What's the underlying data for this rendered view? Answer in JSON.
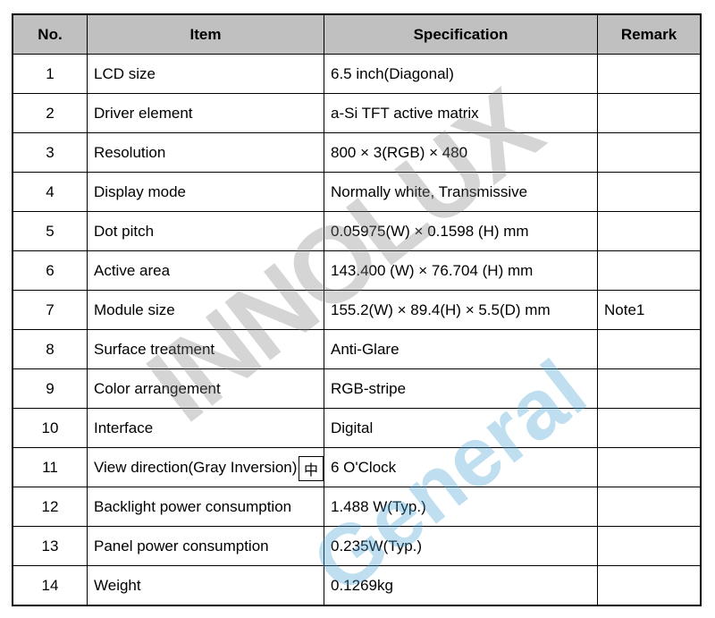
{
  "table": {
    "headers": [
      "No.",
      "Item",
      "Specification",
      "Remark"
    ],
    "rows": [
      {
        "no": "1",
        "item": "LCD size",
        "spec": "6.5 inch(Diagonal)",
        "remark": ""
      },
      {
        "no": "2",
        "item": "Driver element",
        "spec": "a-Si TFT active matrix",
        "remark": ""
      },
      {
        "no": "3",
        "item": "Resolution",
        "spec": "800 × 3(RGB) × 480",
        "remark": ""
      },
      {
        "no": "4",
        "item": "Display mode",
        "spec": "Normally white, Transmissive",
        "remark": ""
      },
      {
        "no": "5",
        "item": "Dot pitch",
        "spec": "0.05975(W) × 0.1598 (H) mm",
        "remark": ""
      },
      {
        "no": "6",
        "item": "Active area",
        "spec": "143.400 (W) × 76.704 (H) mm",
        "remark": ""
      },
      {
        "no": "7",
        "item": "Module size",
        "spec": "155.2(W) × 89.4(H) × 5.5(D) mm",
        "remark": "Note1"
      },
      {
        "no": "8",
        "item": "Surface treatment",
        "spec": "Anti-Glare",
        "remark": ""
      },
      {
        "no": "9",
        "item": "Color arrangement",
        "spec": "RGB-stripe",
        "remark": ""
      },
      {
        "no": "10",
        "item": "Interface",
        "spec": "Digital",
        "remark": ""
      },
      {
        "no": "11",
        "item": "View direction(Gray Inversion)",
        "spec": "6 O'Clock",
        "remark": ""
      },
      {
        "no": "12",
        "item": "Backlight power consumption",
        "spec": "1.488 W(Typ.)",
        "remark": ""
      },
      {
        "no": "13",
        "item": "Panel power consumption",
        "spec": "0.235W(Typ.)",
        "remark": ""
      },
      {
        "no": "14",
        "item": "Weight",
        "spec": "0.1269kg",
        "remark": ""
      }
    ]
  },
  "ime_indicator": "中",
  "watermark": {
    "line1": "INNOLUX",
    "line2": "General"
  },
  "colors": {
    "header_bg": "#c0c0c0",
    "watermark_gray": "#808080",
    "watermark_blue": "#4aa3d6"
  }
}
